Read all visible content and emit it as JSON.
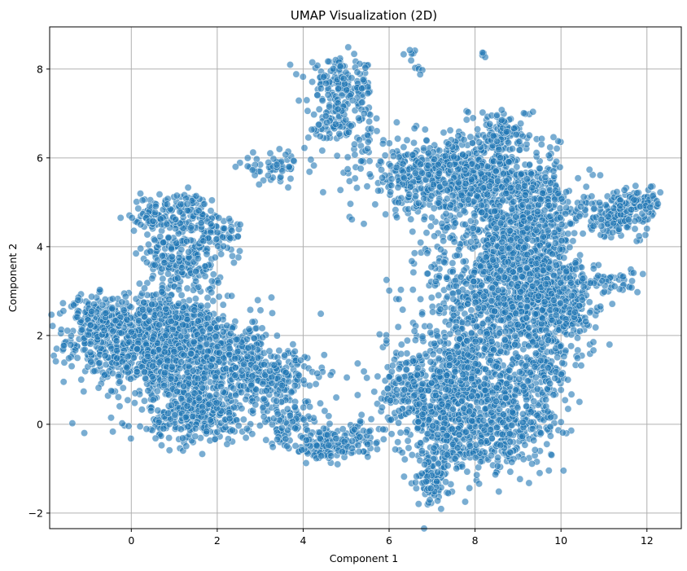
{
  "chart_data": {
    "type": "scatter",
    "title": "UMAP Visualization (2D)",
    "xlabel": "Component 1",
    "ylabel": "Component 2",
    "xlim": [
      -1.9,
      12.8
    ],
    "ylim": [
      -2.35,
      8.95
    ],
    "xticks": [
      0,
      2,
      4,
      6,
      8,
      10,
      12
    ],
    "yticks": [
      -2,
      0,
      2,
      4,
      6,
      8
    ],
    "ytick_labels": [
      "−2",
      "0",
      "2",
      "4",
      "6",
      "8"
    ],
    "grid": true,
    "color": "#1f77b4",
    "clusters": [
      {
        "cx": 0.3,
        "cy": 1.9,
        "sx": 0.9,
        "sy": 0.5,
        "n": 700
      },
      {
        "cx": 1.2,
        "cy": 1.5,
        "sx": 0.8,
        "sy": 0.7,
        "n": 600
      },
      {
        "cx": -0.8,
        "cy": 2.4,
        "sx": 0.35,
        "sy": 0.25,
        "n": 120
      },
      {
        "cx": 1.2,
        "cy": 3.8,
        "sx": 0.45,
        "sy": 0.5,
        "n": 260
      },
      {
        "cx": 0.5,
        "cy": 4.7,
        "sx": 0.25,
        "sy": 0.2,
        "n": 80
      },
      {
        "cx": 1.3,
        "cy": 4.9,
        "sx": 0.25,
        "sy": 0.15,
        "n": 60
      },
      {
        "cx": 2.0,
        "cy": 4.3,
        "sx": 0.3,
        "sy": 0.25,
        "n": 60
      },
      {
        "cx": 1.6,
        "cy": 0.2,
        "sx": 0.6,
        "sy": 0.3,
        "n": 280
      },
      {
        "cx": 2.6,
        "cy": 1.4,
        "sx": 0.5,
        "sy": 0.5,
        "n": 220
      },
      {
        "cx": 3.5,
        "cy": 1.0,
        "sx": 0.5,
        "sy": 0.3,
        "n": 150
      },
      {
        "cx": 3.7,
        "cy": 0.0,
        "sx": 0.4,
        "sy": 0.25,
        "n": 90
      },
      {
        "cx": 4.5,
        "cy": -0.5,
        "sx": 0.4,
        "sy": 0.2,
        "n": 110
      },
      {
        "cx": 5.3,
        "cy": -0.3,
        "sx": 0.35,
        "sy": 0.2,
        "n": 60
      },
      {
        "cx": 3.3,
        "cy": 5.8,
        "sx": 0.4,
        "sy": 0.15,
        "n": 60
      },
      {
        "cx": 4.9,
        "cy": 7.6,
        "sx": 0.4,
        "sy": 0.3,
        "n": 160
      },
      {
        "cx": 4.7,
        "cy": 6.7,
        "sx": 0.25,
        "sy": 0.25,
        "n": 60
      },
      {
        "cx": 5.4,
        "cy": 6.6,
        "sx": 0.2,
        "sy": 0.4,
        "n": 40
      },
      {
        "cx": 6.5,
        "cy": 8.4,
        "sx": 0.06,
        "sy": 0.06,
        "n": 6
      },
      {
        "cx": 6.7,
        "cy": 8.0,
        "sx": 0.06,
        "sy": 0.06,
        "n": 5
      },
      {
        "cx": 8.2,
        "cy": 8.3,
        "sx": 0.04,
        "sy": 0.04,
        "n": 4
      },
      {
        "cx": 6.8,
        "cy": 5.6,
        "sx": 0.7,
        "sy": 0.4,
        "n": 320
      },
      {
        "cx": 8.3,
        "cy": 5.4,
        "sx": 0.8,
        "sy": 0.6,
        "n": 600
      },
      {
        "cx": 9.3,
        "cy": 4.3,
        "sx": 0.6,
        "sy": 0.7,
        "n": 500
      },
      {
        "cx": 8.5,
        "cy": 3.0,
        "sx": 0.8,
        "sy": 0.8,
        "n": 700
      },
      {
        "cx": 9.6,
        "cy": 2.6,
        "sx": 0.5,
        "sy": 0.6,
        "n": 300
      },
      {
        "cx": 8.7,
        "cy": 6.6,
        "sx": 0.3,
        "sy": 0.25,
        "n": 80
      },
      {
        "cx": 11.3,
        "cy": 4.7,
        "sx": 0.45,
        "sy": 0.25,
        "n": 160
      },
      {
        "cx": 11.8,
        "cy": 5.0,
        "sx": 0.25,
        "sy": 0.2,
        "n": 60
      },
      {
        "cx": 11.2,
        "cy": 3.2,
        "sx": 0.3,
        "sy": 0.12,
        "n": 40
      },
      {
        "cx": 8.0,
        "cy": 1.2,
        "sx": 0.6,
        "sy": 0.6,
        "n": 400
      },
      {
        "cx": 7.2,
        "cy": 0.2,
        "sx": 0.5,
        "sy": 0.6,
        "n": 350
      },
      {
        "cx": 8.3,
        "cy": -0.2,
        "sx": 0.6,
        "sy": 0.5,
        "n": 300
      },
      {
        "cx": 7.0,
        "cy": -1.2,
        "sx": 0.2,
        "sy": 0.35,
        "n": 90
      },
      {
        "cx": 6.4,
        "cy": 0.9,
        "sx": 0.4,
        "sy": 0.5,
        "n": 150
      },
      {
        "cx": 9.3,
        "cy": 0.2,
        "sx": 0.4,
        "sy": 0.4,
        "n": 120
      },
      {
        "cx": 9.6,
        "cy": 1.2,
        "sx": 0.4,
        "sy": 0.3,
        "n": 100
      },
      {
        "cx": 10.4,
        "cy": 2.8,
        "sx": 0.3,
        "sy": 0.4,
        "n": 80
      }
    ]
  }
}
